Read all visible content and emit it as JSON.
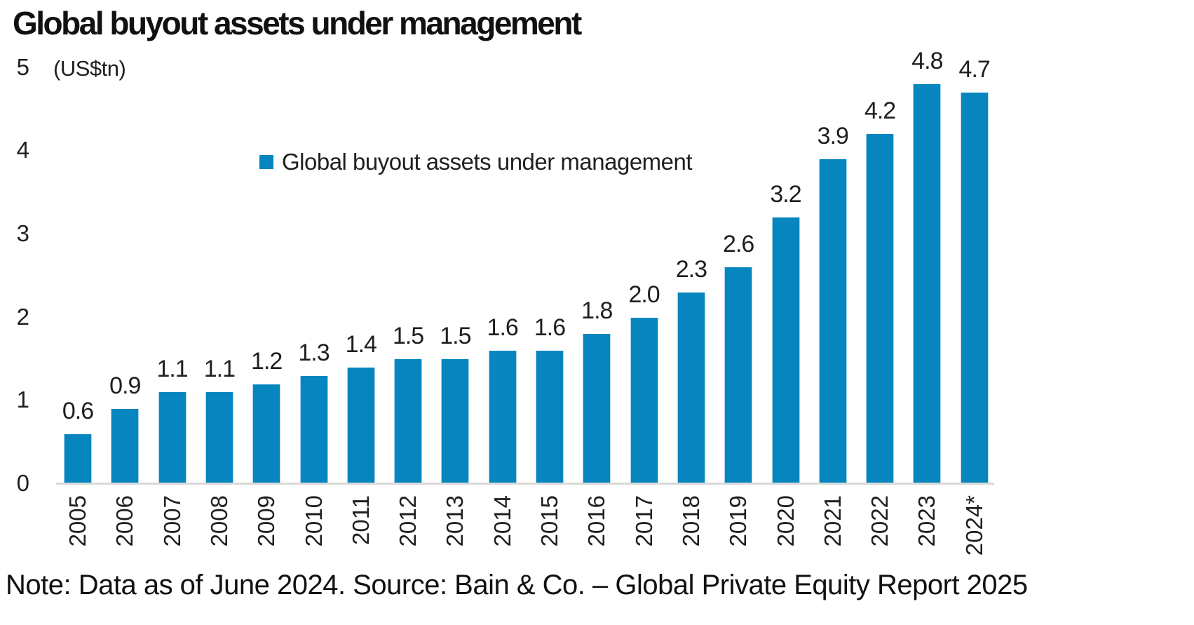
{
  "title": "Global buyout assets under management",
  "unit_label": "(US$tn)",
  "legend": {
    "label": "Global buyout assets under management"
  },
  "note": "Note: Data as of June 2024. Source: Bain & Co. – Global Private Equity Report 2025",
  "colors": {
    "bar": "#0685BF",
    "axis_line": "#D9D9D9",
    "text": "#1F1F1F"
  },
  "chart_data": {
    "type": "bar",
    "title": "Global buyout assets under management",
    "ylabel": "(US$tn)",
    "xlabel": "",
    "categories": [
      "2005",
      "2006",
      "2007",
      "2008",
      "2009",
      "2010",
      "2011",
      "2012",
      "2013",
      "2014",
      "2015",
      "2016",
      "2017",
      "2018",
      "2019",
      "2020",
      "2021",
      "2022",
      "2023",
      "2024*"
    ],
    "series": [
      {
        "name": "Global buyout assets under management",
        "values": [
          0.6,
          0.9,
          1.1,
          1.1,
          1.2,
          1.3,
          1.4,
          1.5,
          1.5,
          1.6,
          1.6,
          1.8,
          2.0,
          2.3,
          2.6,
          3.2,
          3.9,
          4.2,
          4.8,
          4.7
        ]
      }
    ],
    "ylim": [
      0,
      5
    ],
    "yticks": [
      0,
      1,
      2,
      3,
      4,
      5
    ],
    "grid": false,
    "data_labels": true,
    "legend_position": "upper-center",
    "x_tick_rotation": 90
  }
}
